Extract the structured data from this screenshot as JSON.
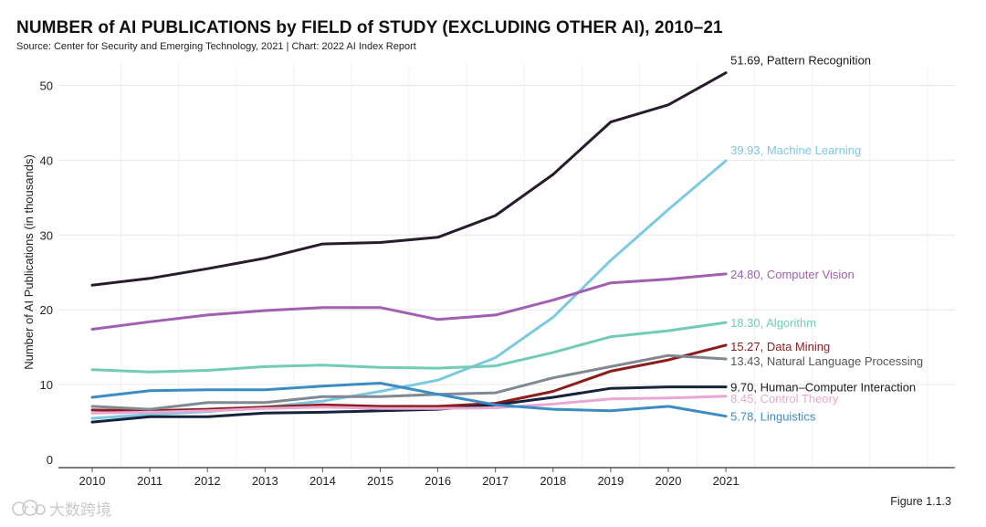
{
  "header": {
    "title": "NUMBER of AI PUBLICATIONS by FIELD of STUDY (EXCLUDING OTHER AI), 2010–21",
    "subtitle": "Source: Center for Security and Emerging Technology, 2021 | Chart: 2022 AI Index Report"
  },
  "footer": {
    "figure_label": "Figure 1.1.3",
    "watermark_text": "大数跨境",
    "watermark_icon": "smiley-cloud-icon"
  },
  "chart_data": {
    "type": "line",
    "title": "NUMBER of AI PUBLICATIONS by FIELD of STUDY (EXCLUDING OTHER AI), 2010–21",
    "xlabel": "",
    "ylabel": "Number of AI Publications (in thousands)",
    "x": [
      2010,
      2011,
      2012,
      2013,
      2014,
      2015,
      2016,
      2017,
      2018,
      2019,
      2020,
      2021
    ],
    "ylim": [
      0,
      55
    ],
    "yticks": [
      0,
      10,
      20,
      30,
      40,
      50
    ],
    "grid": true,
    "series": [
      {
        "name": "Pattern Recognition",
        "color": "#2a1a2e",
        "end_label": "51.69, Pattern Recognition",
        "values": [
          23.3,
          24.2,
          25.5,
          26.9,
          28.8,
          29.0,
          29.7,
          32.6,
          38.1,
          45.1,
          47.4,
          51.69
        ]
      },
      {
        "name": "Machine Learning",
        "color": "#7cc9e2",
        "end_label": "39.93, Machine Learning",
        "values": [
          5.5,
          6.0,
          6.4,
          7.0,
          7.8,
          9.1,
          10.6,
          13.6,
          19.0,
          26.6,
          33.4,
          39.93
        ]
      },
      {
        "name": "Computer Vision",
        "color": "#a05fb0",
        "end_label": "24.80, Computer Vision",
        "values": [
          17.4,
          18.4,
          19.3,
          19.9,
          20.3,
          20.3,
          18.7,
          19.3,
          21.3,
          23.6,
          24.1,
          24.8
        ]
      },
      {
        "name": "Algorithm",
        "color": "#72cbb6",
        "end_label": "18.30, Algorithm",
        "values": [
          12.0,
          11.7,
          11.9,
          12.4,
          12.6,
          12.3,
          12.2,
          12.5,
          14.3,
          16.4,
          17.2,
          18.3
        ]
      },
      {
        "name": "Data Mining",
        "color": "#8e1c1c",
        "end_label": "15.27, Data Mining",
        "values": [
          6.6,
          6.5,
          6.7,
          7.0,
          7.3,
          7.1,
          7.1,
          7.5,
          9.1,
          11.8,
          13.3,
          15.27
        ]
      },
      {
        "name": "Natural Language Processing",
        "color": "#7f8893",
        "end_label": "13.43, Natural Language Processing",
        "values": [
          7.1,
          6.7,
          7.6,
          7.6,
          8.4,
          8.4,
          8.7,
          8.9,
          10.9,
          12.4,
          13.9,
          13.43
        ]
      },
      {
        "name": "Human–Computer Interaction",
        "color": "#17233a",
        "end_label": "9.70, Human–Computer Interaction",
        "values": [
          5.0,
          5.7,
          5.7,
          6.2,
          6.3,
          6.5,
          6.7,
          7.3,
          8.3,
          9.5,
          9.7,
          9.7
        ]
      },
      {
        "name": "Control Theory",
        "color": "#e8a8d2",
        "end_label": "8.45, Control Theory",
        "values": [
          6.2,
          6.3,
          6.5,
          6.8,
          7.0,
          6.8,
          6.8,
          6.9,
          7.4,
          8.1,
          8.2,
          8.45
        ]
      },
      {
        "name": "Linguistics",
        "color": "#3a8cc4",
        "end_label": "5.78, Linguistics",
        "values": [
          8.3,
          9.2,
          9.3,
          9.3,
          9.8,
          10.2,
          8.7,
          7.3,
          6.7,
          6.5,
          7.1,
          5.78
        ]
      }
    ]
  }
}
